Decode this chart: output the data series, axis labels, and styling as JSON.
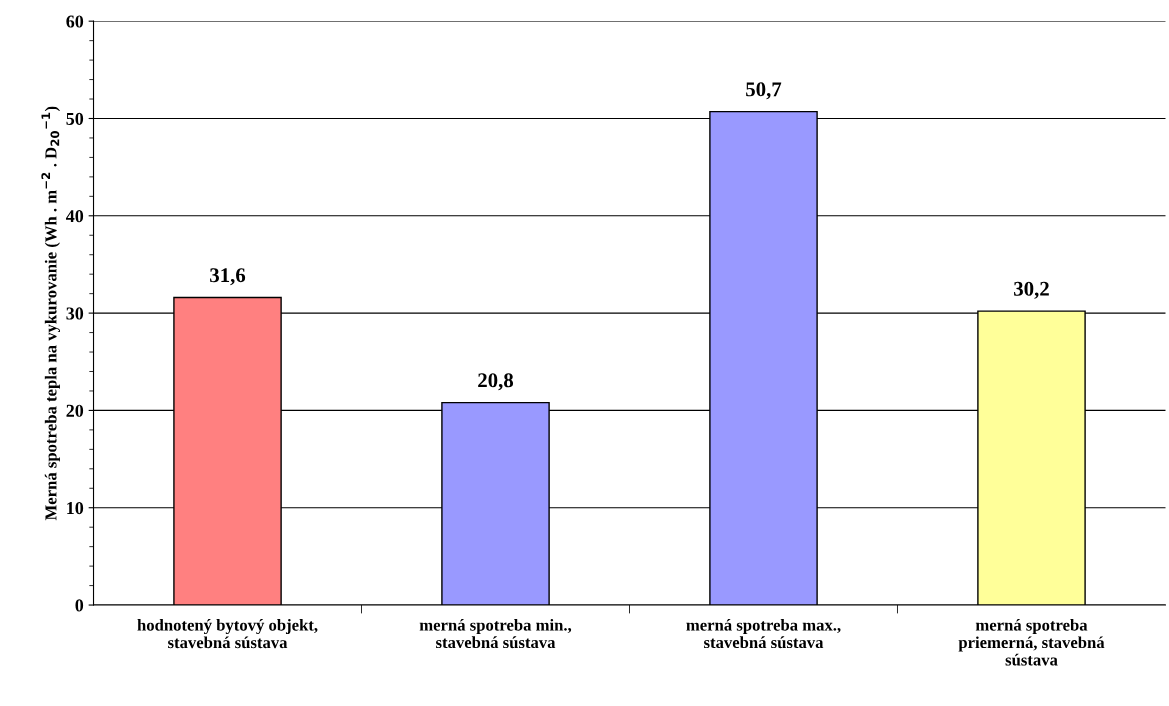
{
  "chart_data": {
    "type": "bar",
    "ylabel": "Merná spotreba tepla na vykurovanie (Wh . m$^{−2}$ . D$_{20}$$^{−1}$)",
    "categories": [
      "hodnotený bytový objekt,\nstavebná sústava",
      "merná spotreba min.,\nstavebná sústava",
      "merná spotreba max.,\nstavebná sústava",
      "merná spotreba\npriemerná, stavebná\nsústava"
    ],
    "values": [
      31.6,
      20.8,
      50.7,
      30.2
    ],
    "colors": [
      "#ff8080",
      "#9999ff",
      "#9999ff",
      "#ffff99"
    ],
    "value_labels": [
      "31,6",
      "20,8",
      "50,7",
      "30,2"
    ],
    "ylim": [
      0,
      60
    ],
    "yticks": [
      0,
      10,
      20,
      30,
      40,
      50,
      60
    ],
    "grid": "y",
    "legend": false
  }
}
